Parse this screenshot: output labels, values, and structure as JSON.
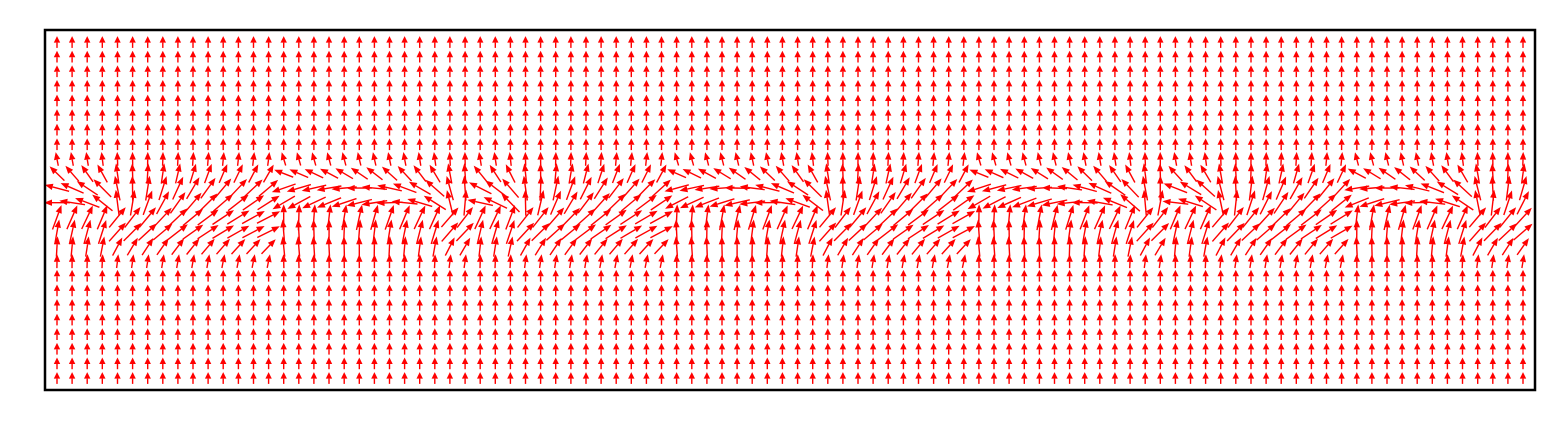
{
  "chart_data": {
    "type": "quiver",
    "title": "",
    "xlabel": "",
    "ylabel": "",
    "grid": false,
    "axes_ticks": false,
    "arrow_color": "#ff0000",
    "background_color": "#ffffff",
    "frame_color": "#000000",
    "grid_shape": {
      "columns": 98,
      "rows": 24
    },
    "xlim": [
      0,
      1
    ],
    "ylim": [
      0,
      1
    ],
    "field": {
      "description_key": "skyrmion-chain",
      "background_direction_deg": 90,
      "band_center_y": 0.5,
      "band_halfwidth_y": 0.13,
      "spin_texture_centers_x": [
        0.035,
        0.265,
        0.31,
        0.52,
        0.735,
        0.79,
        0.965
      ],
      "texture_radius_x": 0.085,
      "max_length": 1.0,
      "background_length": 0.45
    }
  }
}
